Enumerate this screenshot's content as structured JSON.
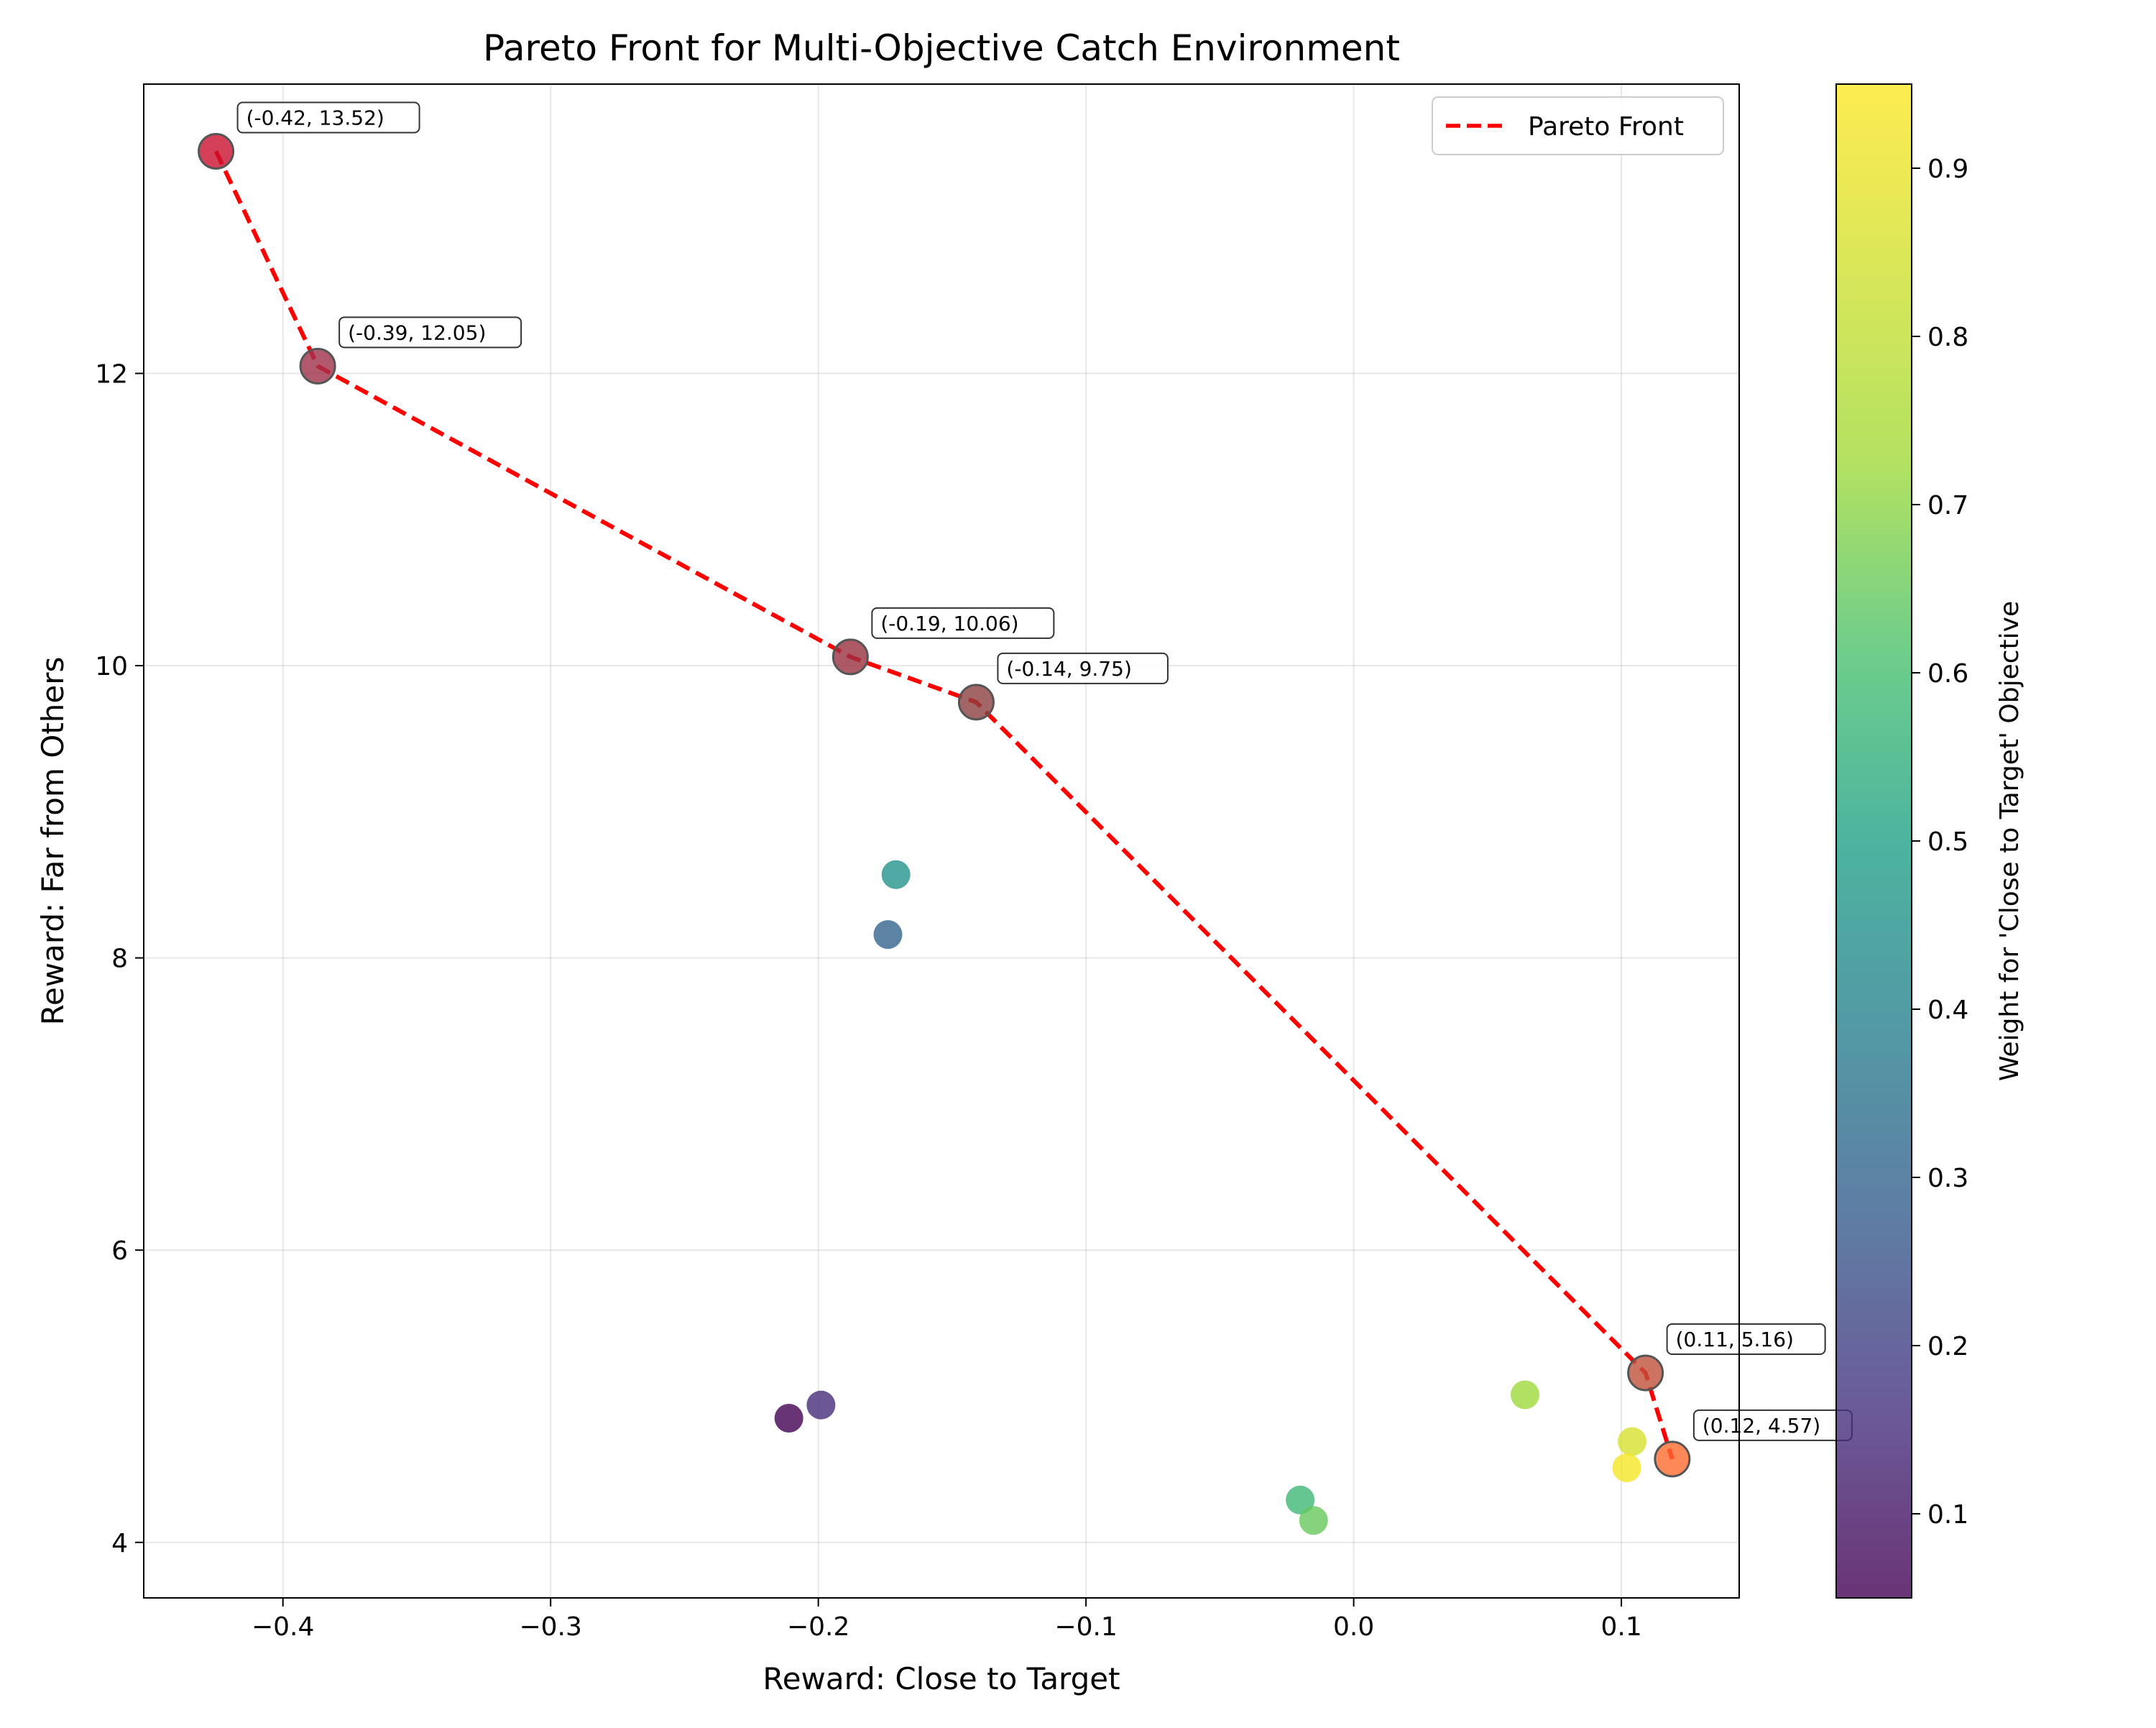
{
  "chart_data": {
    "type": "scatter",
    "title": "Pareto Front for Multi-Objective Catch Environment",
    "xlabel": "Reward: Close to Target",
    "ylabel": "Reward: Far from Others",
    "xlim": [
      -0.452,
      0.144
    ],
    "ylim": [
      3.62,
      13.98
    ],
    "xticks": [
      -0.4,
      -0.3,
      -0.2,
      -0.1,
      0.0,
      0.1
    ],
    "xtick_labels": [
      "−0.4",
      "−0.3",
      "−0.2",
      "−0.1",
      "0.0",
      "0.1"
    ],
    "yticks": [
      4,
      6,
      8,
      10,
      12
    ],
    "ytick_labels": [
      "4",
      "6",
      "8",
      "10",
      "12"
    ],
    "grid": true,
    "legend": {
      "placement": "top-right",
      "entries": [
        "Pareto Front"
      ]
    },
    "colorbar": {
      "label": "Weight for 'Close to Target' Objective",
      "range": [
        0.05,
        0.95
      ],
      "ticks": [
        0.1,
        0.2,
        0.3,
        0.4,
        0.5,
        0.6,
        0.7,
        0.8,
        0.9
      ],
      "tick_labels": [
        "0.1",
        "0.2",
        "0.3",
        "0.4",
        "0.5",
        "0.6",
        "0.7",
        "0.8",
        "0.9"
      ],
      "colormap": "viridis"
    },
    "points": [
      {
        "x": -0.211,
        "y": 4.85,
        "weight": 0.05
      },
      {
        "x": -0.199,
        "y": 4.94,
        "weight": 0.15
      },
      {
        "x": -0.174,
        "y": 8.16,
        "weight": 0.3
      },
      {
        "x": -0.171,
        "y": 8.57,
        "weight": 0.45
      },
      {
        "x": -0.02,
        "y": 4.29,
        "weight": 0.58
      },
      {
        "x": -0.015,
        "y": 4.15,
        "weight": 0.65
      },
      {
        "x": 0.064,
        "y": 5.01,
        "weight": 0.72
      },
      {
        "x": 0.104,
        "y": 4.69,
        "weight": 0.85
      },
      {
        "x": 0.102,
        "y": 4.51,
        "weight": 0.93
      }
    ],
    "pareto_front": {
      "name": "Pareto Front",
      "color": "#ff0000",
      "points": [
        {
          "x": -0.425,
          "y": 13.52,
          "label": "(-0.42, 13.52)",
          "color": "#c8102e"
        },
        {
          "x": -0.387,
          "y": 12.05,
          "label": "(-0.39, 12.05)",
          "color": "#a0304a"
        },
        {
          "x": -0.188,
          "y": 10.06,
          "label": "(-0.19, 10.06)",
          "color": "#9a3040"
        },
        {
          "x": -0.141,
          "y": 9.75,
          "label": "(-0.14, 9.75)",
          "color": "#8c4040"
        },
        {
          "x": 0.109,
          "y": 5.16,
          "label": "(0.11, 5.16)",
          "color": "#c0503a"
        },
        {
          "x": 0.119,
          "y": 4.57,
          "label": "(0.12, 4.57)",
          "color": "#ff6a30"
        }
      ]
    }
  }
}
